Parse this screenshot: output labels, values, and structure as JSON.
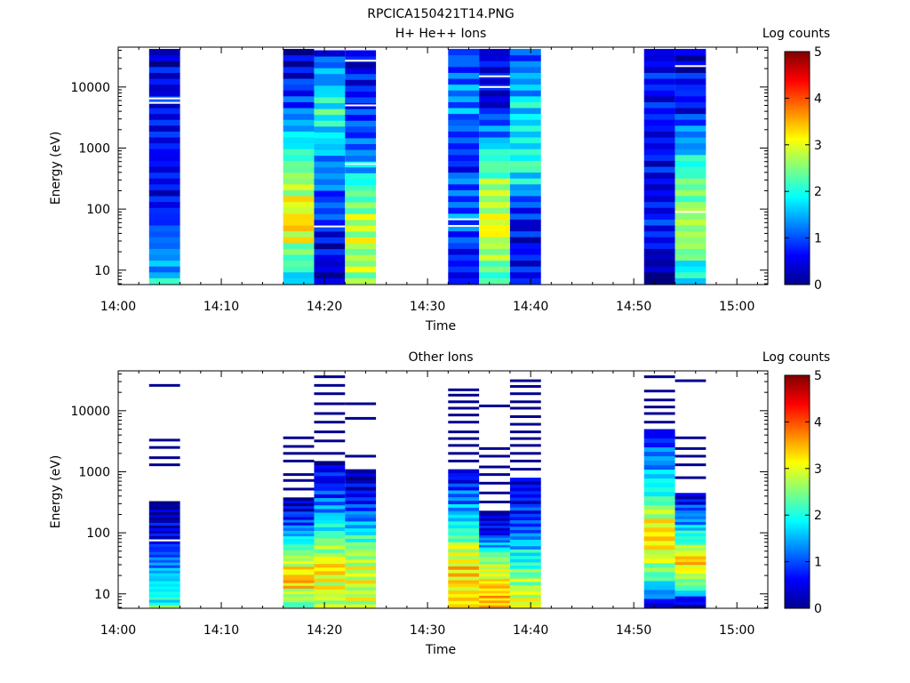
{
  "page": {
    "title": "RPCICA150421T14.PNG"
  },
  "chart_data": [
    {
      "type": "heatmap",
      "title": "H+ He++ Ions",
      "xlabel": "Time",
      "ylabel": "Energy (eV)",
      "colorbar_label": "Log counts",
      "yscale": "log",
      "ylim": [
        5.8,
        45000
      ],
      "xlim": [
        "14:00",
        "15:03"
      ],
      "x_ticks": [
        "14:00",
        "14:10",
        "14:20",
        "14:30",
        "14:40",
        "14:50",
        "15:00"
      ],
      "y_ticks": [
        "10",
        "100",
        "1000",
        "10000"
      ],
      "y_tick_values": [
        10,
        100,
        1000,
        10000
      ],
      "colorbar_range": [
        0,
        5
      ],
      "colorbar_ticks": [
        "0",
        "1",
        "2",
        "3",
        "4",
        "5"
      ],
      "columns": [
        {
          "start": "14:03",
          "end": "14:06",
          "top_energy": 42000,
          "low_value": 2.0,
          "band_values": [
            2.0,
            0.9,
            0.9,
            0.7
          ],
          "gaps": [
            5500,
            6500
          ]
        },
        {
          "start": "14:16",
          "end": "14:19",
          "top_energy": 42000,
          "low_value": 1.8,
          "band_values": [
            1.8,
            3.6,
            2.6,
            1.3,
            0.6
          ],
          "gaps": []
        },
        {
          "start": "14:19",
          "end": "14:22",
          "top_energy": 40000,
          "low_value": 0.5,
          "band_values": [
            0.5,
            1.0,
            1.6,
            2.3,
            1.0
          ],
          "gaps": [
            52
          ]
        },
        {
          "start": "14:22",
          "end": "14:25",
          "top_energy": 40000,
          "low_value": 2.8,
          "band_values": [
            2.8,
            3.2,
            1.8,
            1.0,
            0.8
          ],
          "gaps": [
            550,
            5000,
            27000
          ]
        },
        {
          "start": "14:32",
          "end": "14:35",
          "top_energy": 42000,
          "low_value": 0.7,
          "band_values": [
            0.7,
            1.4,
            1.1,
            1.6,
            1.2
          ],
          "gaps": [
            53,
            68
          ]
        },
        {
          "start": "14:35",
          "end": "14:38",
          "top_energy": 42000,
          "low_value": 2.2,
          "band_values": [
            2.2,
            3.3,
            2.6,
            0.8,
            0.7
          ],
          "gaps": [
            10000,
            15000
          ]
        },
        {
          "start": "14:38",
          "end": "14:41",
          "top_energy": 42000,
          "low_value": 1.0,
          "band_values": [
            1.0,
            0.8,
            2.4,
            2.0,
            1.1
          ],
          "gaps": []
        },
        {
          "start": "14:51",
          "end": "14:54",
          "top_energy": 42000,
          "low_value": 0.2,
          "band_values": [
            0.2,
            1.0,
            0.8,
            1.0,
            0.7
          ],
          "gaps": []
        },
        {
          "start": "14:54",
          "end": "14:57",
          "top_energy": 42000,
          "low_value": 2.0,
          "band_values": [
            2.0,
            3.1,
            2.3,
            0.9,
            0.7
          ],
          "gaps": [
            90,
            22000
          ]
        }
      ]
    },
    {
      "type": "heatmap",
      "title": "Other Ions",
      "xlabel": "Time",
      "ylabel": "Energy (eV)",
      "colorbar_label": "Log counts",
      "yscale": "log",
      "ylim": [
        5.8,
        45000
      ],
      "xlim": [
        "14:00",
        "15:03"
      ],
      "x_ticks": [
        "14:00",
        "14:10",
        "14:20",
        "14:30",
        "14:40",
        "14:50",
        "15:00"
      ],
      "y_ticks": [
        "10",
        "100",
        "1000",
        "10000"
      ],
      "y_tick_values": [
        10,
        100,
        1000,
        10000
      ],
      "colorbar_range": [
        0,
        5
      ],
      "colorbar_ticks": [
        "0",
        "1",
        "2",
        "3",
        "4",
        "5"
      ],
      "columns": [
        {
          "start": "14:03",
          "end": "14:06",
          "solid_top": 330,
          "band_values": [
            2.4,
            1.8,
            0.8,
            0.3
          ],
          "lines": [
            1300,
            1700,
            2500,
            3300,
            26000
          ],
          "gaps": [
            75
          ]
        },
        {
          "start": "14:16",
          "end": "14:19",
          "solid_top": 380,
          "band_values": [
            2.4,
            3.8,
            2.7,
            1.3,
            0.5
          ],
          "lines": [
            520,
            720,
            900,
            1500,
            2000,
            2600,
            3600
          ],
          "gaps": []
        },
        {
          "start": "14:19",
          "end": "14:22",
          "solid_top": 1500,
          "band_values": [
            2.9,
            3.5,
            2.5,
            1.2,
            0.5
          ],
          "lines": [
            2000,
            3200,
            4500,
            6500,
            9000,
            13000,
            19000,
            26000,
            36000
          ],
          "gaps": []
        },
        {
          "start": "14:22",
          "end": "14:25",
          "solid_top": 1100,
          "band_values": [
            3.0,
            3.3,
            2.4,
            1.0,
            0.4
          ],
          "lines": [
            1800,
            7500,
            13000
          ],
          "gaps": []
        },
        {
          "start": "14:32",
          "end": "14:35",
          "solid_top": 1100,
          "band_values": [
            3.4,
            3.6,
            2.7,
            1.6,
            0.7
          ],
          "lines": [
            1500,
            2000,
            2700,
            3500,
            4500,
            6500,
            8500,
            11000,
            14000,
            18000,
            22000
          ],
          "gaps": []
        },
        {
          "start": "14:35",
          "end": "14:38",
          "solid_top": 230,
          "band_values": [
            3.6,
            3.5,
            2.9,
            1.0,
            0.4
          ],
          "lines": [
            320,
            450,
            650,
            900,
            1200,
            1800,
            2400,
            12000
          ],
          "gaps": []
        },
        {
          "start": "14:38",
          "end": "14:41",
          "solid_top": 800,
          "band_values": [
            3.4,
            2.8,
            1.8,
            1.0,
            0.6
          ],
          "lines": [
            1100,
            1500,
            2000,
            2700,
            3500,
            4500,
            6000,
            8000,
            11000,
            14000,
            19000,
            25000,
            31000
          ],
          "gaps": []
        },
        {
          "start": "14:51",
          "end": "14:54",
          "solid_top": 5000,
          "band_values": [
            0.8,
            2.6,
            3.8,
            2.5,
            1.7,
            0.7
          ],
          "lines": [
            6500,
            9000,
            11500,
            15000,
            21000,
            36000
          ],
          "gaps": []
        },
        {
          "start": "14:54",
          "end": "14:57",
          "solid_top": 450,
          "band_values": [
            0.2,
            2.7,
            3.7,
            2.4,
            1.4,
            0.7
          ],
          "lines": [
            800,
            1300,
            1800,
            2400,
            3600,
            31000
          ],
          "gaps": []
        }
      ]
    }
  ]
}
